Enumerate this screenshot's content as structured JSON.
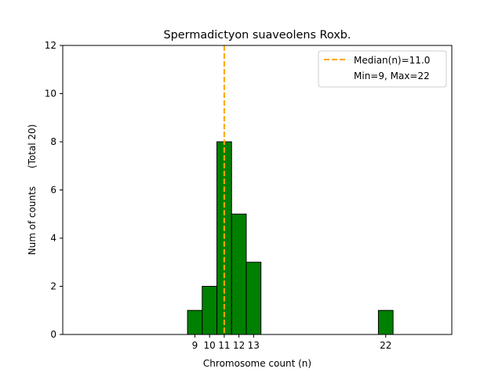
{
  "chart_data": {
    "type": "bar",
    "title": "Spermadictyon suaveolens Roxb.",
    "xlabel": "Chromosome count (n)",
    "ylabel": "Num of counts      (Total 20)",
    "xlim": [
      0,
      26.5
    ],
    "ylim": [
      0,
      12
    ],
    "bin_width": 1,
    "bars": [
      {
        "n": 9,
        "count": 1
      },
      {
        "n": 10,
        "count": 2
      },
      {
        "n": 11,
        "count": 8
      },
      {
        "n": 12,
        "count": 5
      },
      {
        "n": 13,
        "count": 3
      },
      {
        "n": 22,
        "count": 1
      }
    ],
    "x_ticks": [
      9,
      10,
      11,
      12,
      13,
      22
    ],
    "y_ticks": [
      0,
      2,
      4,
      6,
      8,
      10,
      12
    ],
    "median": 11.0,
    "legend": {
      "position": "top-right",
      "entries": [
        "Median(n)=11.0",
        "Min=9, Max=22"
      ]
    },
    "colors": {
      "bar_fill": "#008000",
      "bar_edge": "#000000",
      "median_line": "#ffa500"
    }
  }
}
